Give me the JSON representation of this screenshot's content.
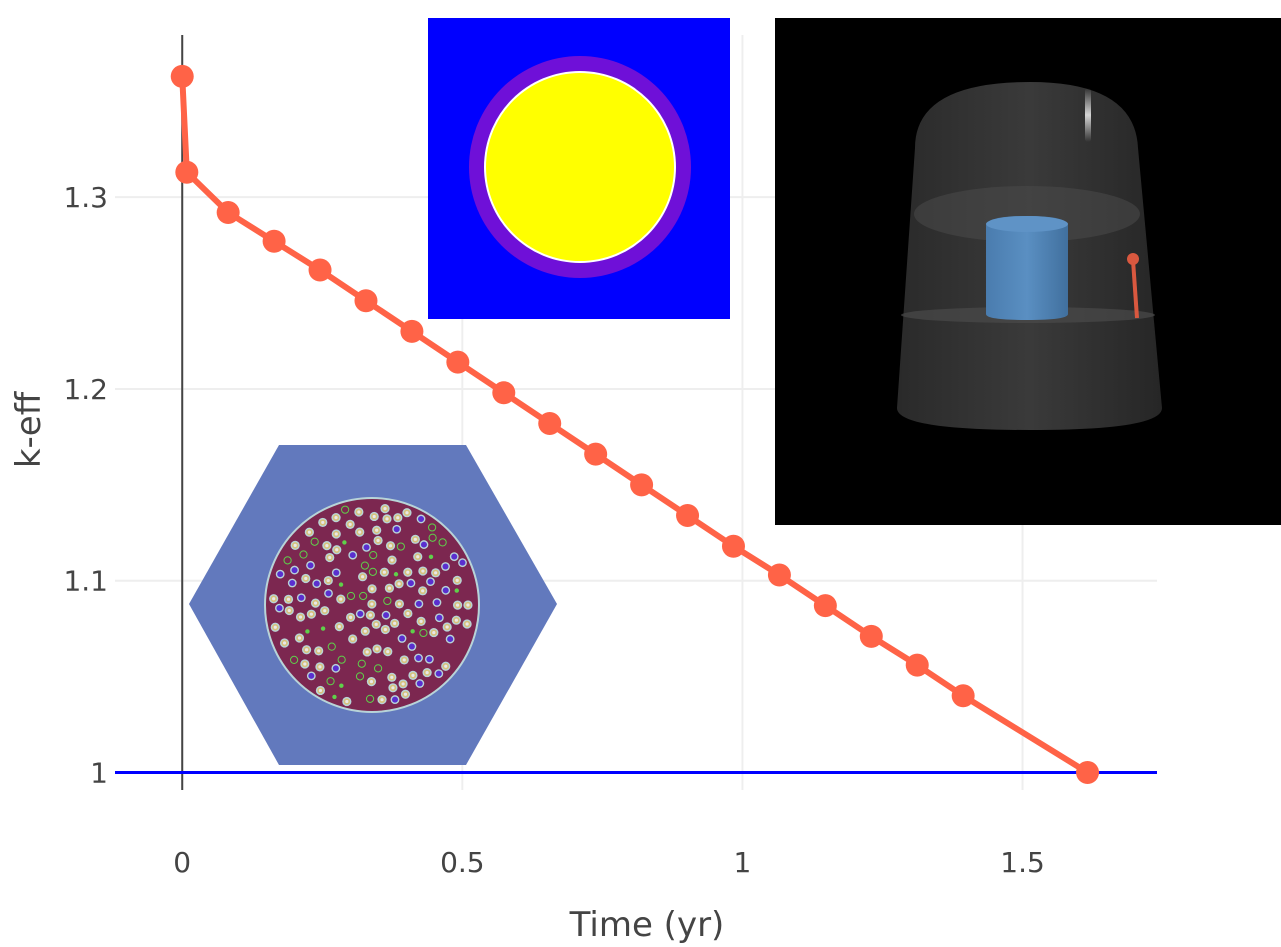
{
  "chart_data": {
    "type": "line",
    "title": "",
    "xlabel": "Time (yr)",
    "ylabel": "k-eff",
    "xlim": [
      -0.12,
      1.74
    ],
    "ylim": [
      0.97,
      1.395
    ],
    "xticks": [
      0,
      0.5,
      1,
      1.5
    ],
    "xtick_labels": [
      "0",
      "0.5",
      "1",
      "1.5"
    ],
    "yticks": [
      1,
      1.1,
      1.2,
      1.3
    ],
    "ytick_labels": [
      "1",
      "1.1",
      "1.2",
      "1.3"
    ],
    "grid": true,
    "series": [
      {
        "color": "#ff6347",
        "x": [
          0,
          0.0082,
          0.082,
          0.164,
          0.246,
          0.328,
          0.41,
          0.492,
          0.574,
          0.656,
          0.738,
          0.82,
          0.902,
          0.984,
          1.066,
          1.148,
          1.23,
          1.312,
          1.394,
          1.616
        ],
        "y": [
          1.363,
          1.313,
          1.292,
          1.277,
          1.262,
          1.246,
          1.23,
          1.214,
          1.198,
          1.182,
          1.166,
          1.15,
          1.134,
          1.118,
          1.103,
          1.087,
          1.071,
          1.056,
          1.04,
          1.0
        ]
      }
    ],
    "reference_line": {
      "y": 1.0,
      "color": "#0000ff"
    },
    "zero_line": {
      "x": 0,
      "color": "#444444"
    }
  },
  "colors": {
    "pin_moderator": "#0000ff",
    "pin_cladding": "#6f10d8",
    "pin_fuel": "#ffff00",
    "hex_block": "#6279bd",
    "hex_matrix": "#7c2750",
    "reactor_background": "#000000",
    "reactor_core": "#4f82b4",
    "reactor_rod": "#d9583f"
  }
}
